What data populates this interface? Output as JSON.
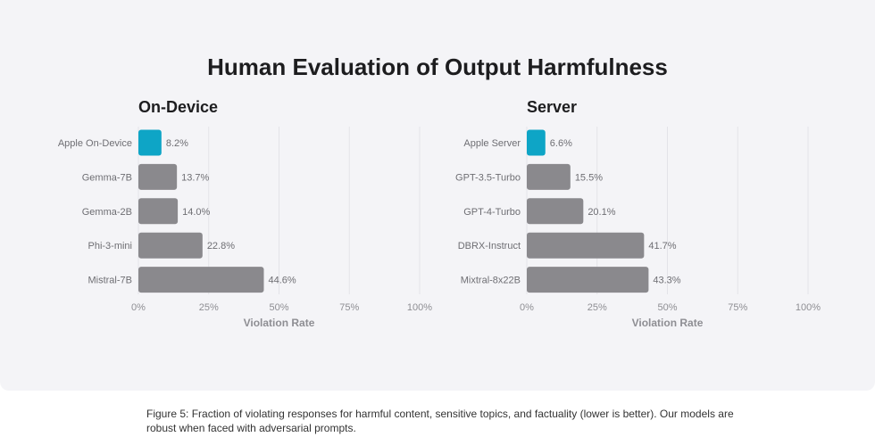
{
  "title": "Human Evaluation of Output Harmfulness",
  "caption": "Figure 5: Fraction of violating responses for harmful content, sensitive topics, and factuality (lower is better). Our models are robust when faced with adversarial prompts.",
  "colors": {
    "highlight": "#0ea5c6",
    "bar": "#8a898d",
    "grid": "#e3e3e8",
    "panel": "#f4f4f7"
  },
  "chart_data": [
    {
      "type": "bar",
      "orientation": "horizontal",
      "title": "On-Device",
      "xlabel": "Violation Rate",
      "xlim": [
        0,
        100
      ],
      "ticks": [
        "0%",
        "25%",
        "50%",
        "75%",
        "100%"
      ],
      "tick_values": [
        0,
        25,
        50,
        75,
        100
      ],
      "categories": [
        "Apple On-Device",
        "Gemma-7B",
        "Gemma-2B",
        "Phi-3-mini",
        "Mistral-7B"
      ],
      "values": [
        8.2,
        13.7,
        14.0,
        22.8,
        44.6
      ],
      "value_labels": [
        "8.2%",
        "13.7%",
        "14.0%",
        "22.8%",
        "44.6%"
      ],
      "highlight_index": 0,
      "grid": true
    },
    {
      "type": "bar",
      "orientation": "horizontal",
      "title": "Server",
      "xlabel": "Violation Rate",
      "xlim": [
        0,
        100
      ],
      "ticks": [
        "0%",
        "25%",
        "50%",
        "75%",
        "100%"
      ],
      "tick_values": [
        0,
        25,
        50,
        75,
        100
      ],
      "categories": [
        "Apple Server",
        "GPT-3.5-Turbo",
        "GPT-4-Turbo",
        "DBRX-Instruct",
        "Mixtral-8x22B"
      ],
      "values": [
        6.6,
        15.5,
        20.1,
        41.7,
        43.3
      ],
      "value_labels": [
        "6.6%",
        "15.5%",
        "20.1%",
        "41.7%",
        "43.3%"
      ],
      "highlight_index": 0,
      "grid": true
    }
  ]
}
